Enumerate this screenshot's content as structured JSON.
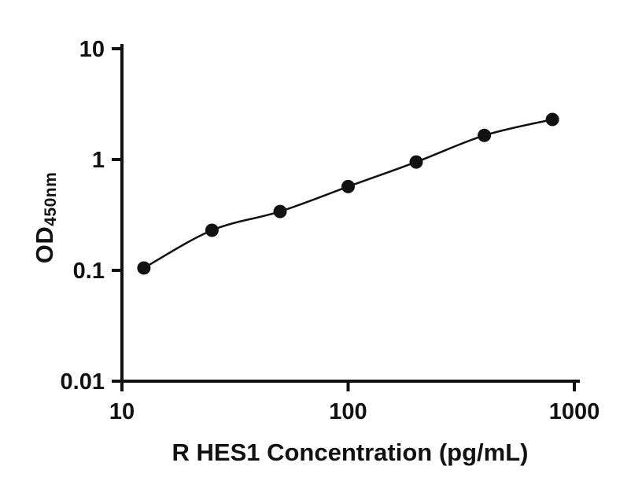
{
  "chart_data": {
    "type": "scatter",
    "title": "",
    "x": [
      12.5,
      25,
      50,
      100,
      200,
      400,
      800
    ],
    "y": [
      0.105,
      0.23,
      0.34,
      0.57,
      0.95,
      1.65,
      2.3
    ],
    "xlabel": "R HES1 Concentration (pg/mL)",
    "ylabel_main": "OD",
    "ylabel_sub": "450nm",
    "x_scale": "log",
    "y_scale": "log",
    "xlim": [
      10,
      1000
    ],
    "ylim": [
      0.01,
      10
    ],
    "x_tick_labels": [
      "10",
      "100",
      "1000"
    ],
    "x_tick_values": [
      10,
      100,
      1000
    ],
    "y_tick_labels": [
      "10",
      "1",
      "0.1",
      "0.01"
    ],
    "y_tick_values": [
      10,
      1,
      0.1,
      0.01
    ],
    "line": true,
    "grid": false,
    "legend_position": "none",
    "marker_color": "#111111",
    "line_color": "#111111",
    "axis_color": "#111111"
  }
}
